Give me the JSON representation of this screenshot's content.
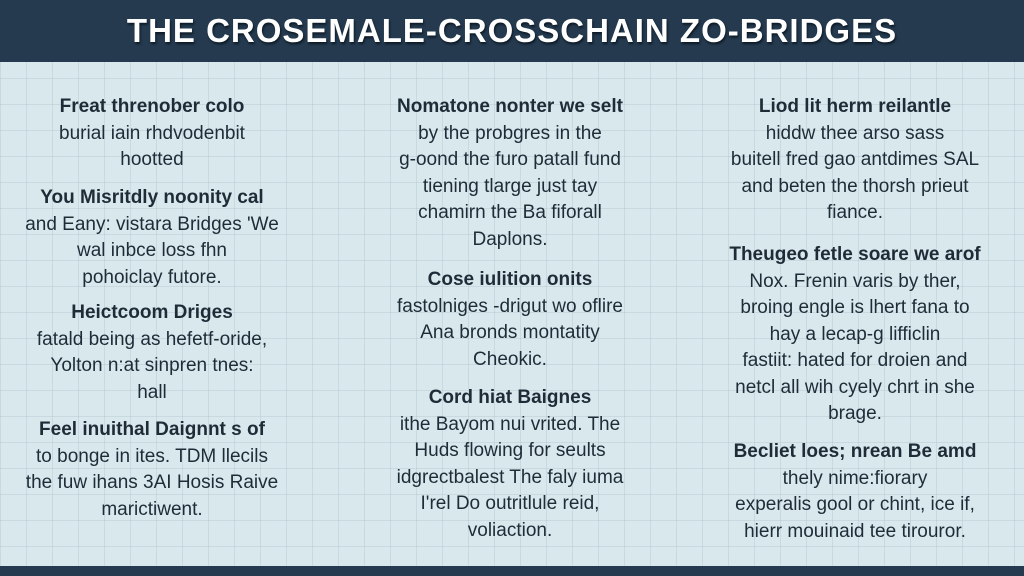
{
  "title": "THE CROSEMALE-CROSSCHAIN ZO-BRIDGES",
  "columns": [
    {
      "blocks": [
        {
          "heading": "Freat threnober colo",
          "lines": [
            "burial iain rhdvodenbit",
            "hootted"
          ]
        },
        {
          "heading": "You Misritdly noonity cal",
          "lines": [
            "and Eany: vistara Bridges 'We",
            "wal inbce loss fhn",
            "pohoiclay futore."
          ]
        },
        {
          "heading": "Heictcoom Driges",
          "lines": [
            "fatald being as hefetf-oride,",
            "Yolton n:at sinpren tnes:",
            "hall"
          ]
        },
        {
          "heading": "Feel inuithal Daignnt s of",
          "lines": [
            "to bonge in ites. TDM llecils",
            "the fuw ihans 3AI Hosis Raive",
            "marictiwent."
          ]
        }
      ]
    },
    {
      "blocks": [
        {
          "heading": "Nomatone nonter we selt",
          "lines": [
            "by the probgres in the",
            "g-oond the furo patall fund",
            "tiening tlarge just tay",
            "chamirn the Ba fiforall",
            "Daplons."
          ]
        },
        {
          "heading": "Cose iulition onits",
          "lines": [
            "fastolniges -drigut wo oflire",
            "Ana bronds montatity",
            "Cheokic."
          ]
        },
        {
          "heading": "Cord hiat Baignes",
          "lines": [
            "ithe Bayom nui vrited. The",
            "Huds flowing for seults",
            "idgrectbalest The faly iuma",
            "I'rel Do outritlule reid,",
            "voliaction."
          ]
        }
      ]
    },
    {
      "blocks": [
        {
          "heading": "Liod lit herm reilantle",
          "lines": [
            "hiddw thee arso sass",
            "buitell fred gao antdimes SAL",
            "and beten the thorsh prieut",
            "fiance."
          ]
        },
        {
          "heading": "Theugeo fetle soare we arof",
          "lines": [
            "Nox. Frenin varis by ther,",
            "broing engle is lhert fana to",
            "hay a lecap-g lifficlin",
            "fastiit: hated for droien and",
            "netcl all wih cyely chrt in she",
            "brage."
          ]
        },
        {
          "heading": "Becliet loes; nrean Be amd",
          "lines": [
            "thely nime:fiorary",
            "experalis gool or chint, ice if,",
            "hierr mouinaid tee tirouror."
          ]
        }
      ]
    }
  ],
  "colors": {
    "header": "#253a4f",
    "background": "#d8e8ed",
    "text": "#1f2c38"
  }
}
